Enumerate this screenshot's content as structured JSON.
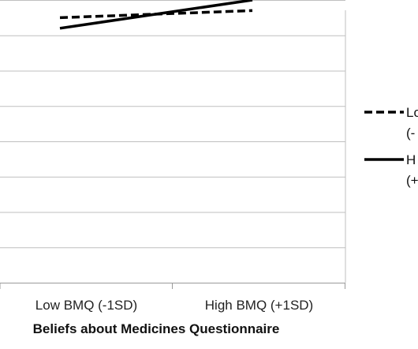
{
  "chart_data": {
    "type": "line",
    "categories": [
      "Low BMQ (-1SD)",
      "High BMQ (+1SD)"
    ],
    "xlabel": "Beliefs about Medicines Questionnaire",
    "ylabel": "",
    "ylim": [
      0,
      8
    ],
    "grid": true,
    "legend_position": "right",
    "series": [
      {
        "name": "Lo",
        "name_line2": "(-",
        "style": "dashed",
        "color": "#000000",
        "values": [
          7.5,
          7.7
        ]
      },
      {
        "name": "H",
        "name_line2": "(+",
        "style": "solid",
        "color": "#000000",
        "values": [
          7.2,
          8.0
        ]
      }
    ]
  }
}
